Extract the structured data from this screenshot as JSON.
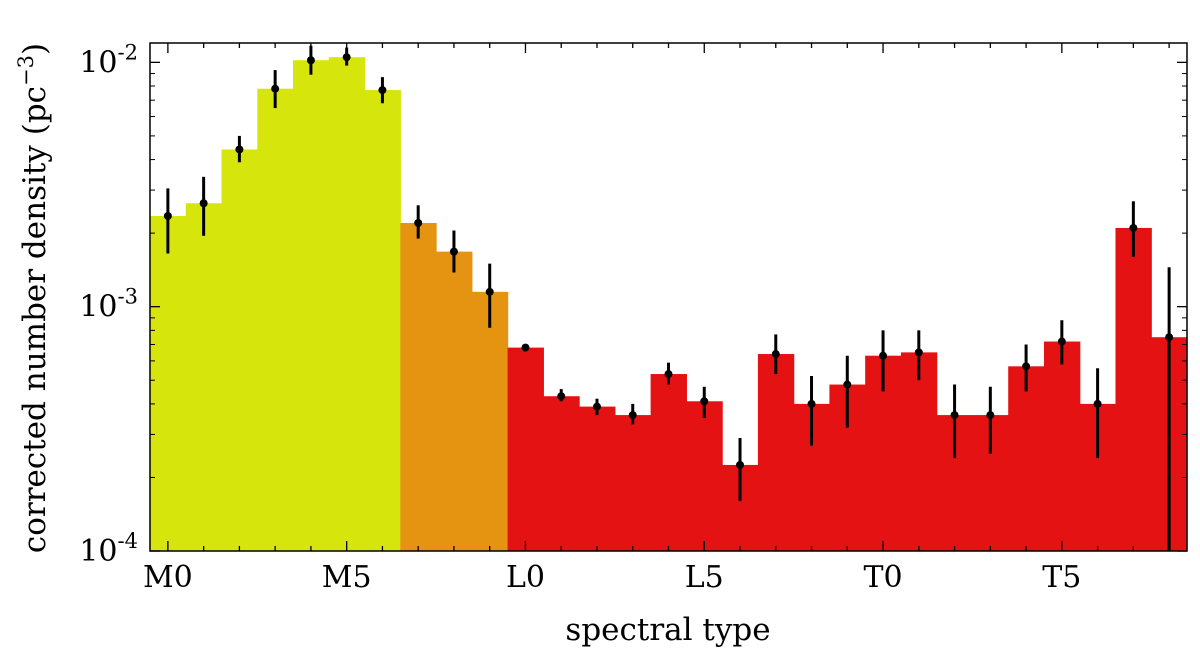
{
  "chart_data": {
    "type": "bar",
    "scale": "log",
    "xlabel": "spectral type",
    "ylabel": "corrected number density (pc",
    "ylabel_exp": "−3",
    "ylabel_close": ")",
    "ylim": [
      0.0001,
      0.012
    ],
    "yticks": [
      {
        "value": 0.01,
        "base": "10",
        "exp": "-2"
      },
      {
        "value": 0.001,
        "base": "10",
        "exp": "-3"
      },
      {
        "value": 0.0001,
        "base": "10",
        "exp": "-4"
      }
    ],
    "xticks": [
      "M0",
      "M5",
      "L0",
      "L5",
      "T0",
      "T5"
    ],
    "colors": {
      "early": "#d6e60c",
      "mid": "#e49410",
      "late": "#e41212",
      "marker": "#000000"
    },
    "bins": [
      {
        "value": 0.00235,
        "lo": 0.00165,
        "hi": 0.00305,
        "group": "early"
      },
      {
        "value": 0.00265,
        "lo": 0.00195,
        "hi": 0.0034,
        "group": "early"
      },
      {
        "value": 0.0044,
        "lo": 0.0039,
        "hi": 0.005,
        "group": "early"
      },
      {
        "value": 0.0078,
        "lo": 0.0065,
        "hi": 0.0093,
        "group": "early"
      },
      {
        "value": 0.0102,
        "lo": 0.0089,
        "hi": 0.0117,
        "group": "early"
      },
      {
        "value": 0.0105,
        "lo": 0.0097,
        "hi": 0.0115,
        "group": "early"
      },
      {
        "value": 0.0077,
        "lo": 0.0068,
        "hi": 0.0087,
        "group": "early"
      },
      {
        "value": 0.0022,
        "lo": 0.0019,
        "hi": 0.0026,
        "group": "mid"
      },
      {
        "value": 0.00168,
        "lo": 0.00138,
        "hi": 0.00205,
        "group": "mid"
      },
      {
        "value": 0.00115,
        "lo": 0.00082,
        "hi": 0.0015,
        "group": "mid"
      },
      {
        "value": 0.00068,
        "lo": 0.00066,
        "hi": 0.0007,
        "group": "late"
      },
      {
        "value": 0.00043,
        "lo": 0.00041,
        "hi": 0.00046,
        "group": "late"
      },
      {
        "value": 0.00039,
        "lo": 0.00036,
        "hi": 0.00042,
        "group": "late"
      },
      {
        "value": 0.00036,
        "lo": 0.00033,
        "hi": 0.0004,
        "group": "late"
      },
      {
        "value": 0.00053,
        "lo": 0.00048,
        "hi": 0.00059,
        "group": "late"
      },
      {
        "value": 0.00041,
        "lo": 0.00035,
        "hi": 0.00047,
        "group": "late"
      },
      {
        "value": 0.000225,
        "lo": 0.00016,
        "hi": 0.00029,
        "group": "late"
      },
      {
        "value": 0.00064,
        "lo": 0.00053,
        "hi": 0.00077,
        "group": "late"
      },
      {
        "value": 0.0004,
        "lo": 0.00027,
        "hi": 0.00052,
        "group": "late"
      },
      {
        "value": 0.00048,
        "lo": 0.00032,
        "hi": 0.00063,
        "group": "late"
      },
      {
        "value": 0.00063,
        "lo": 0.00045,
        "hi": 0.0008,
        "group": "late"
      },
      {
        "value": 0.00065,
        "lo": 0.0005,
        "hi": 0.0008,
        "group": "late"
      },
      {
        "value": 0.00036,
        "lo": 0.00024,
        "hi": 0.00048,
        "group": "late"
      },
      {
        "value": 0.00036,
        "lo": 0.00025,
        "hi": 0.00047,
        "group": "late"
      },
      {
        "value": 0.00057,
        "lo": 0.00045,
        "hi": 0.0007,
        "group": "late"
      },
      {
        "value": 0.00072,
        "lo": 0.00058,
        "hi": 0.00088,
        "group": "late"
      },
      {
        "value": 0.0004,
        "lo": 0.00024,
        "hi": 0.00056,
        "group": "late"
      },
      {
        "value": 0.0021,
        "lo": 0.0016,
        "hi": 0.0027,
        "group": "late"
      },
      {
        "value": 0.00075,
        "lo": 0.0001,
        "hi": 0.00145,
        "group": "late"
      }
    ]
  }
}
